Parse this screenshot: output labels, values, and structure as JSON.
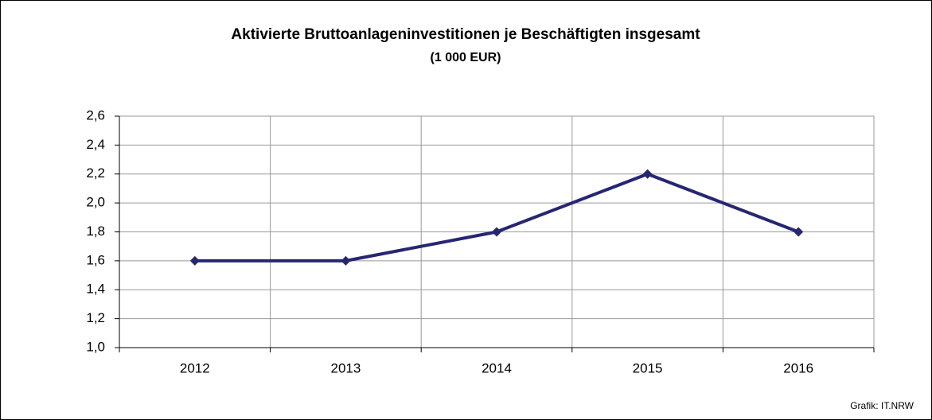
{
  "chart_data": {
    "type": "line",
    "title": "Aktivierte Bruttoanlageninvestitionen je Beschäftigten insgesamt",
    "subtitle": "(1 000 EUR)",
    "source": "Grafik: IT.NRW",
    "categories": [
      "2012",
      "2013",
      "2014",
      "2015",
      "2016"
    ],
    "series": [
      {
        "name": "Aktivierte Bruttoanlageninvestitionen je Beschäftigten",
        "color": "#262673",
        "values": [
          1.6,
          1.6,
          1.8,
          2.2,
          1.8
        ]
      }
    ],
    "ylim": [
      1.0,
      2.6
    ],
    "yticks": [
      {
        "value": 1.0,
        "label": "1,0"
      },
      {
        "value": 1.2,
        "label": "1,2"
      },
      {
        "value": 1.4,
        "label": "1,4"
      },
      {
        "value": 1.6,
        "label": "1,6"
      },
      {
        "value": 1.8,
        "label": "1,8"
      },
      {
        "value": 2.0,
        "label": "2,0"
      },
      {
        "value": 2.2,
        "label": "2,2"
      },
      {
        "value": 2.4,
        "label": "2,4"
      },
      {
        "value": 2.6,
        "label": "2,6"
      }
    ],
    "grid": true
  }
}
